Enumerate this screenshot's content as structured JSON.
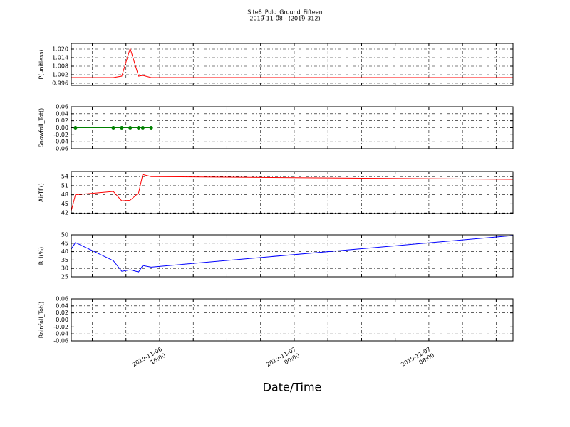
{
  "chart_data": [
    {
      "type": "line",
      "title": "Site8_Polo_Ground_Fifteen",
      "subtitle": "2019-11-08 - (2019-312)",
      "ylabel": "P(unitless)",
      "color": "#ff0000",
      "x": [
        "2019-11-06 10:45",
        "2019-11-06 11:00",
        "2019-11-06 13:15",
        "2019-11-06 13:45",
        "2019-11-06 14:15",
        "2019-11-06 14:45",
        "2019-11-06 15:00",
        "2019-11-06 15:30",
        "2019-11-07 13:00"
      ],
      "values": [
        1.0,
        1.0,
        1.0,
        1.001,
        1.0205,
        1.001,
        1.0015,
        1.0,
        1.0
      ],
      "ylim": [
        0.9945,
        1.024
      ],
      "yticks": [
        0.996,
        1.002,
        1.008,
        1.014,
        {
          "value": 1.02,
          "label": "1.020"
        }
      ],
      "grid": true
    },
    {
      "type": "line",
      "ylabel": "Snowfall_Tot()",
      "color": "#008000",
      "marker": true,
      "x": [
        "2019-11-06 11:00",
        "2019-11-06 13:15",
        "2019-11-06 13:45",
        "2019-11-06 14:15",
        "2019-11-06 14:45",
        "2019-11-06 15:00",
        "2019-11-06 15:30"
      ],
      "values": [
        0,
        0,
        0,
        0,
        0,
        0,
        0
      ],
      "ylim": [
        -0.06,
        0.06
      ],
      "yticks": [
        -0.06,
        -0.04,
        -0.02,
        {
          "value": 0,
          "label": "0.00"
        },
        0.02,
        0.04,
        0.06
      ],
      "grid": true
    },
    {
      "type": "line",
      "ylabel": "AirTF()",
      "color": "#ff0000",
      "x": [
        "2019-11-06 10:45",
        "2019-11-06 11:00",
        "2019-11-06 13:15",
        "2019-11-06 13:45",
        "2019-11-06 14:15",
        "2019-11-06 14:45",
        "2019-11-06 15:00",
        "2019-11-06 15:30",
        "2019-11-07 13:00"
      ],
      "values": [
        42.7,
        48.0,
        49.1,
        46.0,
        46.2,
        48.6,
        54.7,
        54.0,
        53.1
      ],
      "ylim": [
        41.8,
        55.7
      ],
      "yticks": [
        42,
        45,
        48,
        51,
        54
      ],
      "grid": true
    },
    {
      "type": "line",
      "ylabel": "RH(%)",
      "color": "#0000ff",
      "x": [
        "2019-11-06 10:45",
        "2019-11-06 11:00",
        "2019-11-06 13:15",
        "2019-11-06 13:45",
        "2019-11-06 14:15",
        "2019-11-06 14:45",
        "2019-11-06 15:00",
        "2019-11-06 15:30",
        "2019-11-07 13:00"
      ],
      "values": [
        41.5,
        45.4,
        34.6,
        28.3,
        29.2,
        27.9,
        31.7,
        30.8,
        49.6
      ],
      "ylim": [
        25,
        50
      ],
      "yticks": [
        25,
        30,
        35,
        40,
        45,
        50
      ],
      "grid": true
    },
    {
      "type": "line",
      "ylabel": "Rainfall_Tot()",
      "color": "#ff0000",
      "xlabel": "Date/Time",
      "x": [
        "2019-11-06 10:45",
        "2019-11-07 13:00"
      ],
      "values": [
        0,
        0
      ],
      "ylim": [
        -0.06,
        0.06
      ],
      "yticks": [
        -0.06,
        -0.04,
        -0.02,
        {
          "value": 0,
          "label": "0.00"
        },
        0.02,
        0.04,
        0.06
      ],
      "grid": true,
      "xlim": [
        "2019-11-06 10:45",
        "2019-11-07 13:00"
      ],
      "xticks": [
        {
          "value": "2019-11-06 16:00",
          "label": "2019-11-06\n16:00"
        },
        {
          "value": "2019-11-07 00:00",
          "label": "2019-11-07\n00:00"
        },
        {
          "value": "2019-11-07 08:00",
          "label": "2019-11-07\n08:00"
        }
      ],
      "xminor": [
        "2019-11-06 12:00",
        "2019-11-06 14:00",
        "2019-11-06 18:00",
        "2019-11-06 20:00",
        "2019-11-06 22:00",
        "2019-11-07 02:00",
        "2019-11-07 04:00",
        "2019-11-07 06:00",
        "2019-11-07 10:00",
        "2019-11-07 12:00"
      ]
    }
  ]
}
